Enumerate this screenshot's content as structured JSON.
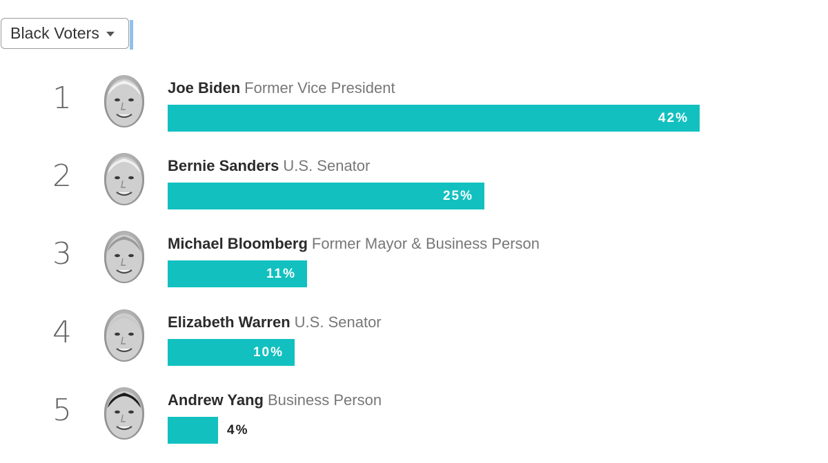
{
  "filter": {
    "selected": "Black Voters"
  },
  "candidates": [
    {
      "rank": "1",
      "name": "Joe Biden",
      "title": "Former Vice President",
      "percent": 42,
      "percent_label": "42%",
      "hair": "#f2f2f2"
    },
    {
      "rank": "2",
      "name": "Bernie Sanders",
      "title": "U.S. Senator",
      "percent": 25,
      "percent_label": "25%",
      "hair": "#f0f0f0"
    },
    {
      "rank": "3",
      "name": "Michael Bloomberg",
      "title": "Former Mayor & Business Person",
      "percent": 11,
      "percent_label": "11%",
      "hair": "#9a9a9a"
    },
    {
      "rank": "4",
      "name": "Elizabeth Warren",
      "title": "U.S. Senator",
      "percent": 10,
      "percent_label": "10%",
      "hair": "#c9c9c9"
    },
    {
      "rank": "5",
      "name": "Andrew Yang",
      "title": "Business Person",
      "percent": 4,
      "percent_label": "4%",
      "hair": "#1c1c1c"
    }
  ],
  "colors": {
    "bar": "#12c0c0"
  },
  "chart_data": {
    "type": "bar",
    "categories": [
      "Joe Biden",
      "Bernie Sanders",
      "Michael Bloomberg",
      "Elizabeth Warren",
      "Andrew Yang"
    ],
    "values": [
      42,
      25,
      11,
      10,
      4
    ]
  }
}
